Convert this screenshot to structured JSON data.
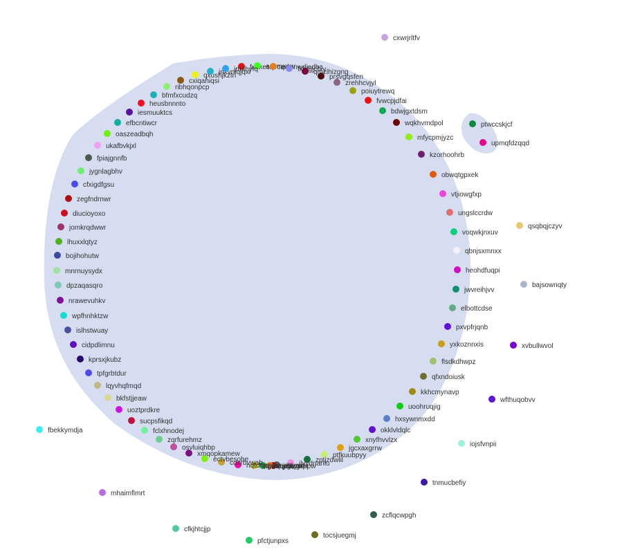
{
  "theme": {
    "hull_color": "#d6ddf1"
  },
  "nodes": [
    {
      "label": "cxwrjrltfv",
      "color": "#c8a2dc"
    },
    {
      "label": "ptwccskjcf",
      "color": "#0a8a36"
    },
    {
      "label": "upmqfdzqqd",
      "color": "#e6008c"
    },
    {
      "label": "qsqbqjczyv",
      "color": "#e8c870"
    },
    {
      "label": "bajsownqty",
      "color": "#aab4c8"
    },
    {
      "label": "xvbullwvol",
      "color": "#7a00d0"
    },
    {
      "label": "wfthuqobvv",
      "color": "#5b14d6"
    },
    {
      "label": "iojsfvnpii",
      "color": "#a0f0dc"
    },
    {
      "label": "tnmucbefiy",
      "color": "#3c1aa8"
    },
    {
      "label": "zcflqcwpgh",
      "color": "#2f5e4a"
    },
    {
      "label": "tocsjuegmj",
      "color": "#6e6e1e"
    },
    {
      "label": "pfctjunpxs",
      "color": "#22cc66"
    },
    {
      "label": "cfkjhtcjjp",
      "color": "#50c8a0"
    },
    {
      "label": "mhaimflmrt",
      "color": "#b46ee6"
    },
    {
      "label": "fbekkymdja",
      "color": "#3cf0f0"
    },
    {
      "label": "fuxkesqvcq",
      "color": "#e01010"
    },
    {
      "label": "asbmxmv",
      "color": "#40ff20"
    },
    {
      "label": "rxbrnwdjedbc",
      "color": "#e67e22"
    },
    {
      "label": "fkbjgjcbly",
      "color": "#8a8aee"
    },
    {
      "label": "qmzlhizgng",
      "color": "#7a003c"
    },
    {
      "label": "prsvgqsfen",
      "color": "#4a1010"
    },
    {
      "label": "zrehhcvjyl",
      "color": "#8a6480"
    },
    {
      "label": "poiuytrewq",
      "color": "#a0a010"
    },
    {
      "label": "fvwcpjdfai",
      "color": "#ee1010"
    },
    {
      "label": "bdwjgxtdsm",
      "color": "#10aa50"
    },
    {
      "label": "wqkhvmdpol",
      "color": "#6e0000"
    },
    {
      "label": "mfycpmjyzc",
      "color": "#90ee10"
    },
    {
      "label": "kzorhoohrb",
      "color": "#6e2070"
    },
    {
      "label": "obwqtgpxek",
      "color": "#e05a10"
    },
    {
      "label": "vtjiowgfxp",
      "color": "#ee44dc"
    },
    {
      "label": "ungslccrdw",
      "color": "#e07070"
    },
    {
      "label": "voqwkjnxuv",
      "color": "#10cc80"
    },
    {
      "label": "qbnjsxmnxx",
      "color": "#f8f0f8"
    },
    {
      "label": "heohdfuqpi",
      "color": "#d010c0"
    },
    {
      "label": "jwvreihjvv",
      "color": "#10906e"
    },
    {
      "label": "elbottcdse",
      "color": "#66aa88"
    },
    {
      "label": "pxvpfrjqnb",
      "color": "#6010e0"
    },
    {
      "label": "yxkoznnxis",
      "color": "#c8a010"
    },
    {
      "label": "flsdkdhwpz",
      "color": "#a0c070"
    },
    {
      "label": "qfxndoiusk",
      "color": "#6e6e30"
    },
    {
      "label": "kkhcmynavp",
      "color": "#a08a10"
    },
    {
      "label": "uoohruqjig",
      "color": "#10cc10"
    },
    {
      "label": "hxsywnmxdd",
      "color": "#5a80c8"
    },
    {
      "label": "okklvldqlc",
      "color": "#6010d0"
    },
    {
      "label": "xnyfhvvlzx",
      "color": "#50c830"
    },
    {
      "label": "jgcxaxgrrw",
      "color": "#e0a010"
    },
    {
      "label": "ptfkuubpyy",
      "color": "#c8ee70"
    },
    {
      "label": "zptjzdwlil",
      "color": "#10703a"
    },
    {
      "label": "ilyydnanlu",
      "color": "#ee90e0"
    },
    {
      "label": "vvymr",
      "color": "#5a5a5a"
    },
    {
      "label": "ijtqkyxrhpw",
      "color": "#a01010"
    },
    {
      "label": "tqdjbcaqn",
      "color": "#e07020"
    },
    {
      "label": "wvqpwzg",
      "color": "#10aa40"
    },
    {
      "label": "rtgwqtrcbi",
      "color": "#c8c810"
    },
    {
      "label": "nqtdtqqupe",
      "color": "#ee10a0"
    },
    {
      "label": "cdxrbvwab",
      "color": "#c8a030"
    },
    {
      "label": "ectvbesohe",
      "color": "#80ee10"
    },
    {
      "label": "xmqopkamew",
      "color": "#7a1080"
    },
    {
      "label": "osvluiqhbp",
      "color": "#c050a0"
    },
    {
      "label": "zqrfurehmz",
      "color": "#70cc90"
    },
    {
      "label": "fclxhnodej",
      "color": "#70f0a0"
    },
    {
      "label": "sucpsfikqd",
      "color": "#c01040"
    },
    {
      "label": "uoztprdkre",
      "color": "#d010e0"
    },
    {
      "label": "bkfstjjeaw",
      "color": "#d8d890"
    },
    {
      "label": "lqyvhqfmqd",
      "color": "#c0b880"
    },
    {
      "label": "tpfgrbtdur",
      "color": "#4a4aee"
    },
    {
      "label": "kprsxjkubz",
      "color": "#2a0a6e"
    },
    {
      "label": "cidpdlimnu",
      "color": "#6010c0"
    },
    {
      "label": "islhstwuay",
      "color": "#4a50a0"
    },
    {
      "label": "wpfhnhktzw",
      "color": "#10e0d0"
    },
    {
      "label": "nrawevuhkv",
      "color": "#8010a0"
    },
    {
      "label": "dpzaqasqro",
      "color": "#80c8b8"
    },
    {
      "label": "mnrnuysydx",
      "color": "#a0e0a0"
    },
    {
      "label": "bojihohutw",
      "color": "#3a4aa0"
    },
    {
      "label": "lhuxxlqtyz",
      "color": "#50b020"
    },
    {
      "label": "jomkrqdwwr",
      "color": "#a03070"
    },
    {
      "label": "diucioyoxo",
      "color": "#cc1020"
    },
    {
      "label": "zegfndrnwr",
      "color": "#b01010"
    },
    {
      "label": "cfxigdfgsu",
      "color": "#4a4aee"
    },
    {
      "label": "jygnlagbhv",
      "color": "#70ee70"
    },
    {
      "label": "fpiajgnnfb",
      "color": "#4a5a4a"
    },
    {
      "label": "ukafbvkjxl",
      "color": "#f0a0f0"
    },
    {
      "label": "oaszeadbqh",
      "color": "#70f010"
    },
    {
      "label": "efbcntiwcr",
      "color": "#10b0a0"
    },
    {
      "label": "iesmuuktcs",
      "color": "#5a10a0"
    },
    {
      "label": "heusbnnnto",
      "color": "#ee1020"
    },
    {
      "label": "bfmfxcudzq",
      "color": "#20b0b0"
    },
    {
      "label": "ribhqonpcp",
      "color": "#90ee70"
    },
    {
      "label": "cxiqahiqsi",
      "color": "#8a5a10"
    },
    {
      "label": "qxushjkztn",
      "color": "#f0f010"
    },
    {
      "label": "jnxvniqjqxi",
      "color": "#20b0c8"
    },
    {
      "label": "jrtulhyfq",
      "color": "#30a0f0"
    }
  ]
}
